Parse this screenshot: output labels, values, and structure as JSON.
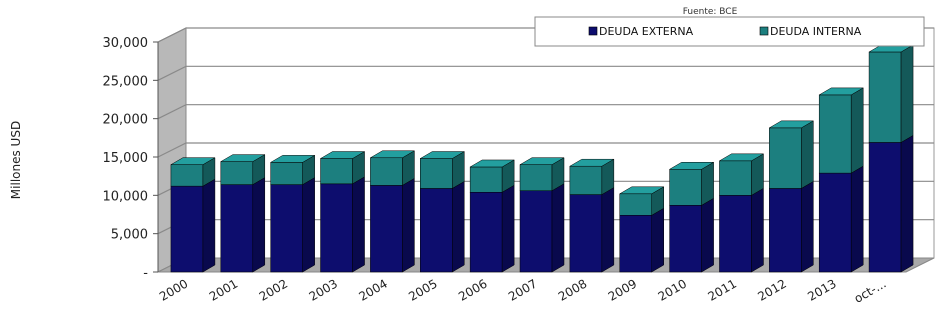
{
  "chart_data": {
    "type": "bar",
    "stacked": true,
    "three_d": true,
    "source_note": "Fuente: BCE",
    "ylabel": "Millones USD",
    "ylim": [
      0,
      30000
    ],
    "ytick_values": [
      0,
      5000,
      10000,
      15000,
      20000,
      25000,
      30000
    ],
    "ytick_labels": [
      "-",
      "5,000",
      "10,000",
      "15,000",
      "20,000",
      "25,000",
      "30,000"
    ],
    "grid": true,
    "legend_position": "top-right",
    "categories": [
      "2000",
      "2001",
      "2002",
      "2003",
      "2004",
      "2005",
      "2006",
      "2007",
      "2008",
      "2009",
      "2010",
      "2011",
      "2012",
      "2013",
      "oct-..."
    ],
    "series": [
      {
        "name": "DEUDA EXTERNA",
        "color": "#0d0d6e",
        "values": [
          11200,
          11400,
          11400,
          11500,
          11300,
          10900,
          10400,
          10600,
          10100,
          7400,
          8700,
          10000,
          10900,
          12900,
          16900
        ]
      },
      {
        "name": "DEUDA INTERNA",
        "color": "#1c7f7f",
        "values": [
          2800,
          3000,
          2900,
          3300,
          3600,
          3900,
          3300,
          3400,
          3700,
          2800,
          4700,
          4500,
          7900,
          10200,
          11800
        ]
      }
    ]
  }
}
